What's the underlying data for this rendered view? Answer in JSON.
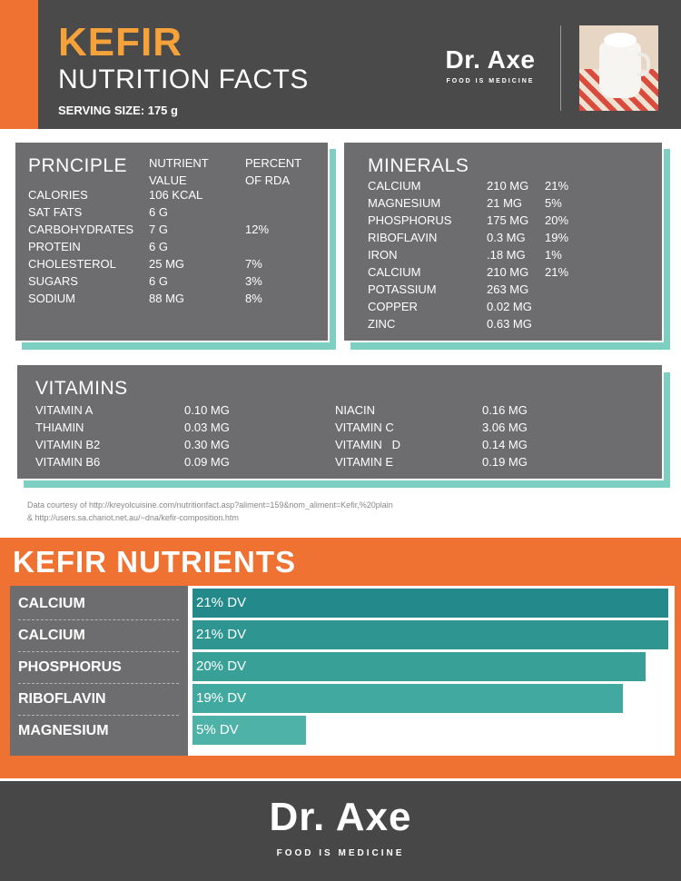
{
  "header": {
    "title": "KEFIR",
    "subtitle": "NUTRITION FACTS",
    "serving_size": "SERVING SIZE: 175 g",
    "brand_name": "Dr. Axe",
    "brand_tagline": "FOOD IS MEDICINE",
    "colors": {
      "accent": "#f07233",
      "title": "#f5a23a",
      "background": "#4a4a4a"
    }
  },
  "principle": {
    "title": "PRNCIPLE",
    "col_nutrient": "NUTRIENT VALUE",
    "col_percent": "PERCENT OF RDA",
    "rows": [
      {
        "name": "CALORIES",
        "value": "106 KCAL",
        "percent": ""
      },
      {
        "name": "SAT FATS",
        "value": "6 G",
        "percent": ""
      },
      {
        "name": "CARBOHYDRATES",
        "value": "7 G",
        "percent": "12%"
      },
      {
        "name": "PROTEIN",
        "value": "6 G",
        "percent": ""
      },
      {
        "name": "CHOLESTEROL",
        "value": "25 MG",
        "percent": "7%"
      },
      {
        "name": "SUGARS",
        "value": "6 G",
        "percent": "3%"
      },
      {
        "name": "SODIUM",
        "value": "88 MG",
        "percent": "8%"
      }
    ]
  },
  "minerals": {
    "title": "MINERALS",
    "rows": [
      {
        "name": "CALCIUM",
        "value": "210 MG",
        "percent": "21%"
      },
      {
        "name": "MAGNESIUM",
        "value": "21 MG",
        "percent": "5%"
      },
      {
        "name": "PHOSPHORUS",
        "value": "175 MG",
        "percent": "20%"
      },
      {
        "name": "RIBOFLAVIN",
        "value": "0.3 MG",
        "percent": "19%"
      },
      {
        "name": "IRON",
        "value": ".18 MG",
        "percent": "1%"
      },
      {
        "name": "CALCIUM",
        "value": "210 MG",
        "percent": "21%"
      },
      {
        "name": "POTASSIUM",
        "value": "263 MG",
        "percent": ""
      },
      {
        "name": "COPPER",
        "value": "0.02 MG",
        "percent": ""
      },
      {
        "name": "ZINC",
        "value": "0.63 MG",
        "percent": ""
      }
    ]
  },
  "vitamins": {
    "title": "VITAMINS",
    "left": [
      {
        "name": "VITAMIN A",
        "value": "0.10 MG"
      },
      {
        "name": "THIAMIN",
        "value": "0.03 MG"
      },
      {
        "name": "VITAMIN B2",
        "value": "0.30 MG"
      },
      {
        "name": "VITAMIN B6",
        "value": "0.09 MG"
      }
    ],
    "right": [
      {
        "name": "NIACIN",
        "value": "0.16 MG"
      },
      {
        "name": "VITAMIN C",
        "value": "3.06 MG"
      },
      {
        "name": "VITAMIN   D",
        "value": "0.14 MG"
      },
      {
        "name": "VITAMIN E",
        "value": "0.19 MG"
      }
    ]
  },
  "source": {
    "line1": "Data courtesy of http://kreyolcuisine.com/nutritionfact.asp?aliment=159&nom_aliment=Kefir,%20plain",
    "line2": "& http://users.sa.chariot.net.au/~dna/kefir-composition.htm"
  },
  "nutrients": {
    "title": "KEFIR NUTRIENTS",
    "bars": [
      {
        "label": "CALCIUM",
        "value": 21,
        "text": "21% DV",
        "color": "#23898a"
      },
      {
        "label": "CALCIUM",
        "value": 21,
        "text": "21% DV",
        "color": "#2e9590"
      },
      {
        "label": "PHOSPHORUS",
        "value": 20,
        "text": "20% DV",
        "color": "#38a097"
      },
      {
        "label": "RIBOFLAVIN",
        "value": 19,
        "text": "19% DV",
        "color": "#42a9a0"
      },
      {
        "label": "MAGNESIUM",
        "value": 5,
        "text": "5% DV",
        "color": "#4fb2a8"
      }
    ]
  },
  "footer": {
    "brand_name": "Dr. Axe",
    "brand_tagline": "FOOD IS MEDICINE"
  }
}
